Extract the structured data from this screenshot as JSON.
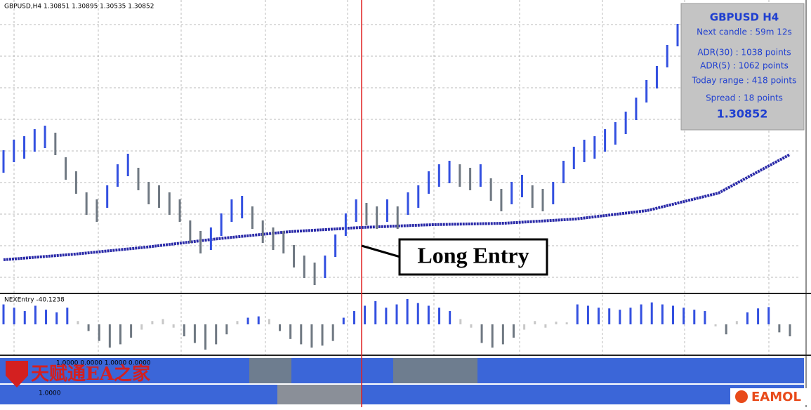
{
  "chart_data": {
    "type": "bar",
    "header": "GBPUSD,H4  1.30851 1.30895 1.30535 1.30852",
    "closes": [
      1.2885,
      1.29,
      1.2905,
      1.2915,
      1.292,
      1.291,
      1.2875,
      1.2855,
      1.2825,
      1.2815,
      1.2835,
      1.2865,
      1.288,
      1.286,
      1.284,
      1.2835,
      1.2825,
      1.2815,
      1.2785,
      1.277,
      1.2775,
      1.2795,
      1.2815,
      1.282,
      1.2805,
      1.2785,
      1.2775,
      1.277,
      1.275,
      1.2735,
      1.2725,
      1.2735,
      1.2765,
      1.2795,
      1.2815,
      1.281,
      1.2805,
      1.2815,
      1.2805,
      1.2825,
      1.2835,
      1.2855,
      1.2865,
      1.287,
      1.2865,
      1.286,
      1.2865,
      1.2845,
      1.283,
      1.284,
      1.285,
      1.2835,
      1.283,
      1.284,
      1.287,
      1.289,
      1.29,
      1.2905,
      1.2915,
      1.2925,
      1.294,
      1.296,
      1.2985,
      1.3005,
      1.3035,
      1.3065
    ],
    "ma": [
      1.2745,
      1.2753,
      1.2763,
      1.2775,
      1.2785,
      1.2791,
      1.2795,
      1.2797,
      1.2803,
      1.2815,
      1.284,
      1.2895
    ],
    "info": {
      "title": "GBPUSD H4",
      "lines": [
        "Next candle : 59m 12s",
        "ADR(30) : 1038 points",
        "ADR(5) : 1062 points",
        "Today range : 418 points",
        "Spread : 18 points"
      ],
      "price": "1.30852"
    },
    "annotation": "Long Entry",
    "indicator": {
      "label": "NEXEntry -40.1238",
      "values": [
        30,
        25,
        20,
        28,
        22,
        18,
        25,
        5,
        -10,
        -25,
        -35,
        -30,
        -20,
        -8,
        5,
        8,
        -5,
        -18,
        -28,
        -38,
        -30,
        -15,
        5,
        10,
        12,
        8,
        -10,
        -22,
        -30,
        -35,
        -32,
        -25,
        10,
        20,
        28,
        35,
        25,
        30,
        38,
        32,
        28,
        25,
        20,
        8,
        -5,
        -28,
        -35,
        -30,
        -20,
        -8,
        5,
        -5,
        4,
        3,
        30,
        28,
        25,
        24,
        22,
        25,
        30,
        33,
        30,
        28,
        25,
        22,
        20,
        -3,
        -15,
        5,
        18,
        24,
        26,
        -12,
        -18
      ]
    },
    "strip1_label": "1.0000 0.0000 1.0000 0.0000",
    "strip2_label": "1.0000",
    "watermark": "天赋通EA之家",
    "logo": "EAMOL"
  }
}
